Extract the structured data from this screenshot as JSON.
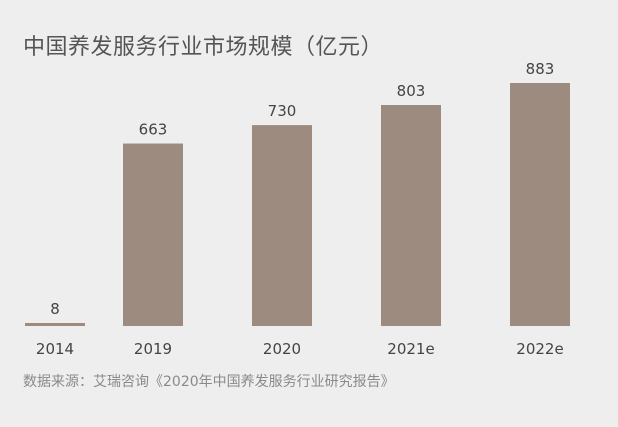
{
  "colors": {
    "background": "#eeeeee",
    "bar": "#9c8b7e",
    "title_text": "#555555",
    "label_text": "#444444",
    "source_text": "#8a8a8a"
  },
  "chart_data": {
    "type": "bar",
    "title": "中国养发服务行业市场规模（亿元）",
    "categories": [
      "2014",
      "2019",
      "2020",
      "2021e",
      "2022e"
    ],
    "values": [
      8,
      663,
      730,
      803,
      883
    ],
    "data_labels": [
      "8",
      "663",
      "730",
      "803",
      "883"
    ],
    "xlabel": "",
    "ylabel": "",
    "ylim": [
      0,
      883
    ],
    "grid": false,
    "legend": "none"
  },
  "source": "数据来源：艾瑞咨询《2020年中国养发服务行业研究报告》"
}
